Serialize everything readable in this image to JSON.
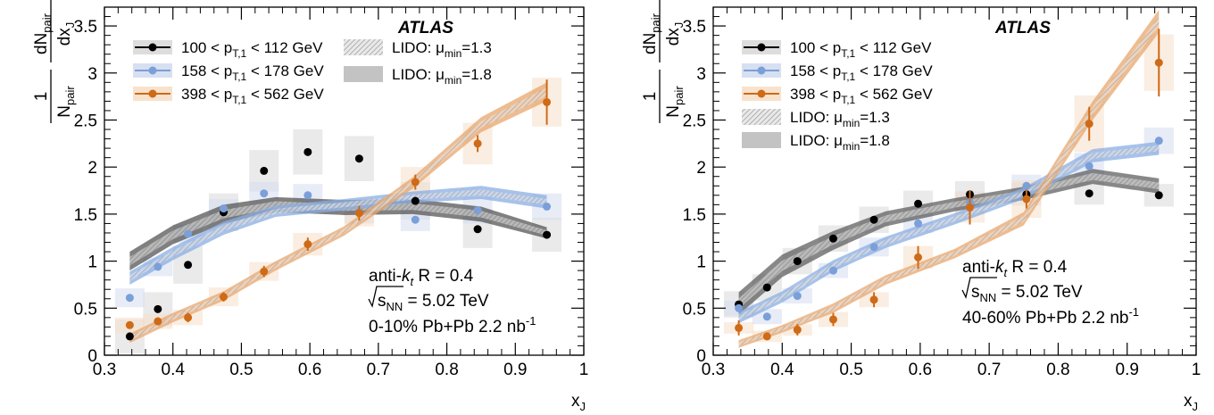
{
  "chart_data": [
    {
      "type": "scatter",
      "panel": "left",
      "title": "",
      "experiment_label": "ATLAS",
      "xlabel": "x",
      "xlabel_sub": "J",
      "ylabel_parts": {
        "one": "1",
        "N": "N",
        "pair_sub": "pair",
        "dN": "dN",
        "dx": "dx",
        "J_sub": "J"
      },
      "xlim": [
        0.3,
        1.0
      ],
      "ylim": [
        0,
        3.7
      ],
      "xticks": [
        "0.3",
        "0.4",
        "0.5",
        "0.6",
        "0.7",
        "0.8",
        "0.9",
        "1"
      ],
      "yticks": [
        "0",
        "0.5",
        "1",
        "1.5",
        "2",
        "2.5",
        "3",
        "3.5"
      ],
      "xtick_values": [
        0.3,
        0.4,
        0.5,
        0.6,
        0.7,
        0.8,
        0.9,
        1.0
      ],
      "ytick_values": [
        0,
        0.5,
        1,
        1.5,
        2,
        2.5,
        3,
        3.5
      ],
      "annotations": {
        "algo_prefix": "anti-",
        "algo_k": "k",
        "algo_t": "t",
        "algo_suffix": " R = 0.4",
        "sqrt_s": "s",
        "sqrt_sub": "NN",
        "energy": " = 5.02 TeV",
        "system": "0-10% Pb+Pb 2.2 nb",
        "system_sup": "-1"
      },
      "series": [
        {
          "name_pre": "100 < p",
          "name_sub": "T,1",
          "name_post": " < 112 GeV",
          "color": "#000000",
          "band": "#d9d9d9",
          "x": [
            0.337,
            0.378,
            0.422,
            0.474,
            0.533,
            0.597,
            0.672,
            0.754,
            0.845,
            0.946
          ],
          "y": [
            0.2,
            0.49,
            0.96,
            1.52,
            1.96,
            2.16,
            2.09,
            1.64,
            1.34,
            1.28
          ],
          "syst": [
            0.18,
            0.18,
            0.2,
            0.2,
            0.22,
            0.24,
            0.24,
            0.2,
            0.2,
            0.18
          ]
        },
        {
          "name_pre": "158 < p",
          "name_sub": "T,1",
          "name_post": " < 178 GeV",
          "color": "#7b9fd8",
          "band": "#d3ddf0",
          "x": [
            0.337,
            0.378,
            0.422,
            0.474,
            0.533,
            0.597,
            0.672,
            0.754,
            0.845,
            0.946
          ],
          "y": [
            0.61,
            0.94,
            1.29,
            1.56,
            1.72,
            1.7,
            1.52,
            1.44,
            1.54,
            1.58
          ],
          "syst": [
            0.1,
            0.1,
            0.1,
            0.1,
            0.12,
            0.12,
            0.12,
            0.12,
            0.14,
            0.14
          ]
        },
        {
          "name_pre": "398 < p",
          "name_sub": "T,1",
          "name_post": " < 562 GeV",
          "color": "#cf6a16",
          "band": "#f6dfc8",
          "x": [
            0.337,
            0.378,
            0.422,
            0.474,
            0.533,
            0.597,
            0.672,
            0.754,
            0.845,
            0.946
          ],
          "y": [
            0.32,
            0.36,
            0.4,
            0.62,
            0.89,
            1.18,
            1.51,
            1.84,
            2.25,
            2.69
          ],
          "syst": [
            0.08,
            0.08,
            0.08,
            0.1,
            0.1,
            0.12,
            0.14,
            0.16,
            0.22,
            0.26
          ],
          "stat": [
            0.04,
            0.04,
            0.05,
            0.05,
            0.06,
            0.07,
            0.08,
            0.08,
            0.09,
            0.24
          ]
        }
      ],
      "models": [
        {
          "name_pre": "LIDO: μ",
          "name_sub": "min",
          "name_post": "=1.3",
          "style": "hatched"
        },
        {
          "name_pre": "LIDO: μ",
          "name_sub": "min",
          "name_post": "=1.8",
          "style": "solid"
        }
      ],
      "model_curves": [
        {
          "series": 0,
          "x": [
            0.337,
            0.4,
            0.474,
            0.55,
            0.65,
            0.75,
            0.85,
            0.946
          ],
          "y": [
            1.0,
            1.28,
            1.5,
            1.6,
            1.57,
            1.58,
            1.5,
            1.3
          ],
          "half": [
            0.1,
            0.1,
            0.1,
            0.08,
            0.08,
            0.08,
            0.08,
            0.06
          ],
          "fill": "#555555",
          "opacity": 0.75
        },
        {
          "series": 1,
          "x": [
            0.337,
            0.4,
            0.474,
            0.55,
            0.65,
            0.75,
            0.85,
            0.946
          ],
          "y": [
            0.82,
            1.08,
            1.35,
            1.53,
            1.6,
            1.68,
            1.73,
            1.63
          ],
          "half": [
            0.07,
            0.07,
            0.07,
            0.06,
            0.06,
            0.06,
            0.07,
            0.07
          ],
          "fill": "#8aaee3",
          "opacity": 0.75
        },
        {
          "series": 2,
          "x": [
            0.337,
            0.4,
            0.474,
            0.55,
            0.65,
            0.75,
            0.85,
            0.946
          ],
          "y": [
            0.18,
            0.4,
            0.63,
            0.95,
            1.32,
            1.83,
            2.45,
            2.8
          ],
          "half": [
            0.05,
            0.05,
            0.05,
            0.05,
            0.05,
            0.06,
            0.08,
            0.1
          ],
          "fill": "#e8a56b",
          "opacity": 0.75
        }
      ]
    },
    {
      "type": "scatter",
      "panel": "right",
      "title": "",
      "experiment_label": "ATLAS",
      "xlabel": "x",
      "xlabel_sub": "J",
      "ylabel_parts": {
        "one": "1",
        "N": "N",
        "pair_sub": "pair",
        "dN": "dN",
        "dx": "dx",
        "J_sub": "J"
      },
      "xlim": [
        0.3,
        1.0
      ],
      "ylim": [
        0,
        3.7
      ],
      "xticks": [
        "0.3",
        "0.4",
        "0.5",
        "0.6",
        "0.7",
        "0.8",
        "0.9",
        "1"
      ],
      "yticks": [
        "0",
        "0.5",
        "1",
        "1.5",
        "2",
        "2.5",
        "3",
        "3.5"
      ],
      "xtick_values": [
        0.3,
        0.4,
        0.5,
        0.6,
        0.7,
        0.8,
        0.9,
        1.0
      ],
      "ytick_values": [
        0,
        0.5,
        1,
        1.5,
        2,
        2.5,
        3,
        3.5
      ],
      "annotations": {
        "algo_prefix": "anti-",
        "algo_k": "k",
        "algo_t": "t",
        "algo_suffix": " R = 0.4",
        "sqrt_s": "s",
        "sqrt_sub": "NN",
        "energy": " = 5.02 TeV",
        "system": "40-60% Pb+Pb 2.2 nb",
        "system_sup": "-1"
      },
      "series": [
        {
          "name_pre": "100 < p",
          "name_sub": "T,1",
          "name_post": " < 112 GeV",
          "color": "#000000",
          "band": "#d9d9d9",
          "x": [
            0.337,
            0.378,
            0.422,
            0.474,
            0.533,
            0.597,
            0.672,
            0.754,
            0.845,
            0.946
          ],
          "y": [
            0.54,
            0.72,
            1.0,
            1.24,
            1.44,
            1.61,
            1.71,
            1.71,
            1.72,
            1.7
          ],
          "syst": [
            0.14,
            0.14,
            0.14,
            0.14,
            0.14,
            0.14,
            0.14,
            0.12,
            0.12,
            0.12
          ]
        },
        {
          "name_pre": "158 < p",
          "name_sub": "T,1",
          "name_post": " < 178 GeV",
          "color": "#7b9fd8",
          "band": "#d3ddf0",
          "x": [
            0.337,
            0.378,
            0.422,
            0.474,
            0.533,
            0.597,
            0.672,
            0.754,
            0.845,
            0.946
          ],
          "y": [
            0.5,
            0.41,
            0.63,
            0.9,
            1.15,
            1.4,
            1.62,
            1.8,
            2.01,
            2.28
          ],
          "syst": [
            0.08,
            0.08,
            0.08,
            0.08,
            0.1,
            0.1,
            0.12,
            0.12,
            0.14,
            0.14
          ]
        },
        {
          "name_pre": "398 < p",
          "name_sub": "T,1",
          "name_post": " < 562 GeV",
          "color": "#cf6a16",
          "band": "#f6dfc8",
          "x": [
            0.337,
            0.378,
            0.422,
            0.474,
            0.533,
            0.597,
            0.672,
            0.754,
            0.845,
            0.946
          ],
          "y": [
            0.29,
            0.2,
            0.27,
            0.38,
            0.59,
            1.04,
            1.57,
            1.66,
            2.46,
            3.11
          ],
          "syst": [
            0.06,
            0.06,
            0.06,
            0.08,
            0.08,
            0.12,
            0.16,
            0.2,
            0.3,
            0.3
          ],
          "stat": [
            0.08,
            0.04,
            0.06,
            0.07,
            0.08,
            0.12,
            0.18,
            0.1,
            0.18,
            0.36
          ]
        }
      ],
      "models": [
        {
          "name_pre": "LIDO: μ",
          "name_sub": "min",
          "name_post": "=1.3",
          "style": "hatched"
        },
        {
          "name_pre": "LIDO: μ",
          "name_sub": "min",
          "name_post": "=1.8",
          "style": "solid"
        }
      ],
      "model_curves": [
        {
          "series": 0,
          "x": [
            0.337,
            0.4,
            0.474,
            0.55,
            0.65,
            0.75,
            0.85,
            0.946
          ],
          "y": [
            0.55,
            0.95,
            1.22,
            1.45,
            1.6,
            1.72,
            1.9,
            1.8
          ],
          "half": [
            0.12,
            0.12,
            0.1,
            0.08,
            0.07,
            0.07,
            0.08,
            0.08
          ],
          "fill": "#555555",
          "opacity": 0.7
        },
        {
          "series": 1,
          "x": [
            0.337,
            0.4,
            0.474,
            0.55,
            0.65,
            0.75,
            0.85,
            0.946
          ],
          "y": [
            0.4,
            0.62,
            0.95,
            1.2,
            1.45,
            1.72,
            2.12,
            2.2
          ],
          "half": [
            0.06,
            0.06,
            0.06,
            0.06,
            0.06,
            0.06,
            0.07,
            0.07
          ],
          "fill": "#8aaee3",
          "opacity": 0.75
        },
        {
          "series": 2,
          "x": [
            0.337,
            0.4,
            0.474,
            0.55,
            0.65,
            0.75,
            0.85,
            0.946
          ],
          "y": [
            0.12,
            0.28,
            0.5,
            0.8,
            1.08,
            1.45,
            2.6,
            3.55
          ],
          "half": [
            0.04,
            0.04,
            0.05,
            0.05,
            0.05,
            0.07,
            0.1,
            0.12
          ],
          "fill": "#e8a56b",
          "opacity": 0.75
        }
      ]
    }
  ]
}
